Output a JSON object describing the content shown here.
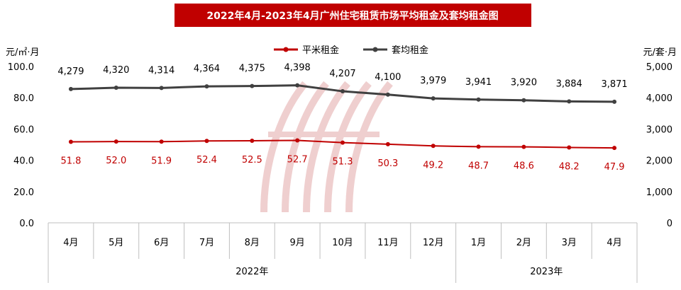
{
  "chart_data": {
    "type": "line",
    "title": "2022年4月-2023年4月广州住宅租赁市场平均租金及套均租金图",
    "left_axis_unit": "元/㎡·月",
    "right_axis_unit": "元/套·月",
    "categories": [
      "4月",
      "5月",
      "6月",
      "7月",
      "8月",
      "9月",
      "10月",
      "11月",
      "12月",
      "1月",
      "2月",
      "3月",
      "4月"
    ],
    "year_groups": [
      {
        "label": "2022年",
        "from": 0,
        "to": 8
      },
      {
        "label": "2023年",
        "from": 9,
        "to": 12
      }
    ],
    "y_left": {
      "min": 0,
      "max": 100,
      "ticks": [
        0,
        20,
        40,
        60,
        80,
        100
      ],
      "tick_labels": [
        "0.0",
        "20.0",
        "40.0",
        "60.0",
        "80.0",
        "100.0"
      ]
    },
    "y_right": {
      "min": 0,
      "max": 5000,
      "ticks": [
        0,
        1000,
        2000,
        3000,
        4000,
        5000
      ],
      "tick_labels": [
        "0",
        "1,000",
        "2,000",
        "3,000",
        "4,000",
        "5,000"
      ]
    },
    "legend_position": "top-center",
    "grid": false,
    "series": [
      {
        "name": "平米租金",
        "axis": "left",
        "color": "#c00000",
        "values": [
          51.8,
          52.0,
          51.9,
          52.4,
          52.5,
          52.7,
          51.3,
          50.3,
          49.2,
          48.7,
          48.6,
          48.2,
          47.9
        ],
        "labels": [
          "51.8",
          "52.0",
          "51.9",
          "52.4",
          "52.5",
          "52.7",
          "51.3",
          "50.3",
          "49.2",
          "48.7",
          "48.6",
          "48.2",
          "47.9"
        ]
      },
      {
        "name": "套均租金",
        "axis": "right",
        "color": "#404040",
        "values": [
          4279,
          4320,
          4314,
          4364,
          4375,
          4398,
          4207,
          4100,
          3979,
          3941,
          3920,
          3884,
          3871
        ],
        "labels": [
          "4,279",
          "4,320",
          "4,314",
          "4,364",
          "4,375",
          "4,398",
          "4,207",
          "4,100",
          "3,979",
          "3,941",
          "3,920",
          "3,884",
          "3,871"
        ]
      }
    ]
  },
  "colors": {
    "title_bg": "#c00000",
    "title_fg": "#ffffff",
    "axis_line": "#bfbfbf",
    "watermark": "#e8b4b4"
  }
}
